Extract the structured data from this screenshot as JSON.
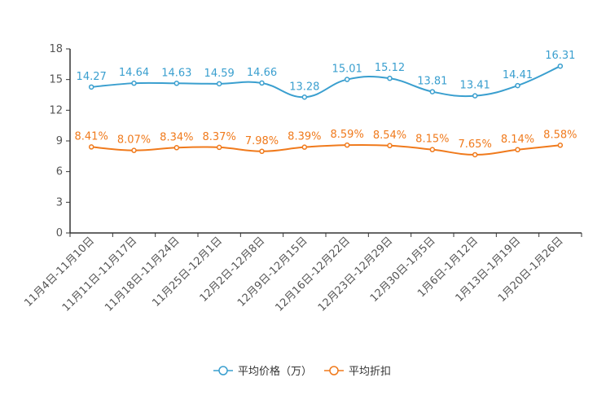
{
  "chart_data": {
    "type": "line",
    "title": "",
    "xlabel": "",
    "ylabel": "",
    "ylim": [
      0,
      18
    ],
    "yticks": [
      0,
      3,
      6,
      9,
      12,
      15,
      18
    ],
    "grid": false,
    "legend_position": "bottom-center",
    "categories": [
      "11月4日-11月10日",
      "11月11日-11月17日",
      "11月18日-11月24日",
      "11月25日-12月1日",
      "12月2日-12月8日",
      "12月9日-12月15日",
      "12月16日-12月22日",
      "12月23日-12月29日",
      "12月30日-1月5日",
      "1月6日-1月12日",
      "1月13日-1月19日",
      "1月20日-1月26日"
    ],
    "series": [
      {
        "name": "平均价格（万）",
        "color": "#3a9fcf",
        "values": [
          14.27,
          14.64,
          14.63,
          14.59,
          14.66,
          13.28,
          15.01,
          15.12,
          13.81,
          13.41,
          14.41,
          16.31
        ],
        "labels": [
          "14.27",
          "14.64",
          "14.63",
          "14.59",
          "14.66",
          "13.28",
          "15.01",
          "15.12",
          "13.81",
          "13.41",
          "14.41",
          "16.31"
        ]
      },
      {
        "name": "平均折扣",
        "color": "#f07a1c",
        "values": [
          8.41,
          8.07,
          8.34,
          8.37,
          7.98,
          8.39,
          8.59,
          8.54,
          8.15,
          7.65,
          8.14,
          8.58
        ],
        "labels": [
          "8.41%",
          "8.07%",
          "8.34%",
          "8.37%",
          "7.98%",
          "8.39%",
          "8.59%",
          "8.54%",
          "8.15%",
          "7.65%",
          "8.14%",
          "8.58%"
        ]
      }
    ]
  }
}
